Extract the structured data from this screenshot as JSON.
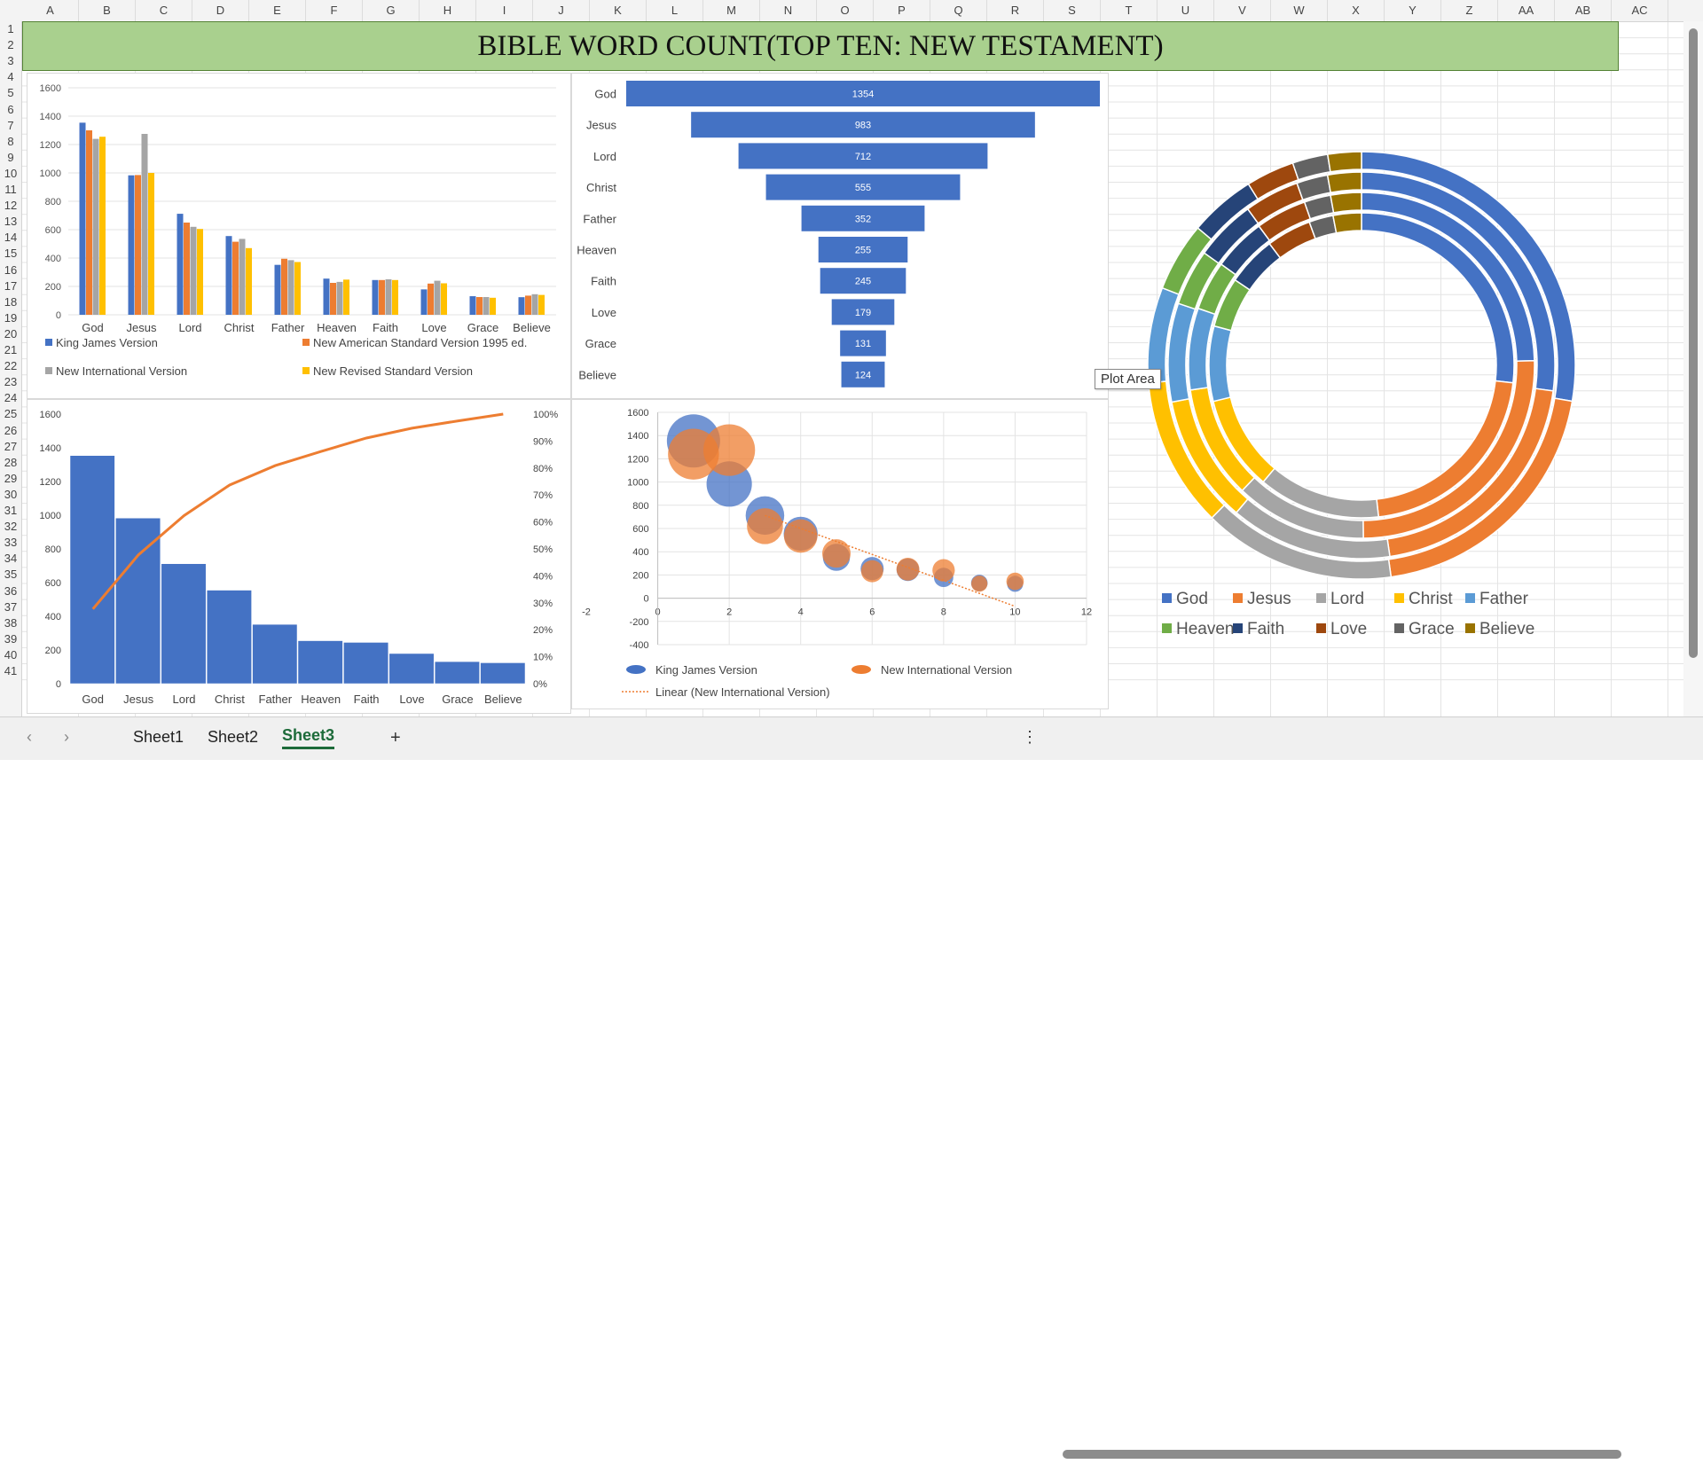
{
  "sheet": {
    "title": "BIBLE WORD COUNT(TOP TEN: NEW TESTAMENT)",
    "columns": [
      "A",
      "B",
      "C",
      "D",
      "E",
      "F",
      "G",
      "H",
      "I",
      "J",
      "K",
      "L",
      "M",
      "N",
      "O",
      "P",
      "Q",
      "R",
      "S",
      "T",
      "U",
      "V",
      "W",
      "X",
      "Y",
      "Z",
      "AA",
      "AB",
      "AC"
    ],
    "rows": [
      "1",
      "2",
      "3",
      "4",
      "5",
      "6",
      "7",
      "8",
      "9",
      "10",
      "11",
      "12",
      "13",
      "14",
      "15",
      "16",
      "17",
      "18",
      "19",
      "20",
      "21",
      "22",
      "23",
      "24",
      "25",
      "26",
      "27",
      "28",
      "29",
      "30",
      "31",
      "32",
      "33",
      "34",
      "35",
      "36",
      "37",
      "38",
      "39",
      "40",
      "41"
    ],
    "tooltip": "Plot Area"
  },
  "tabs": {
    "items": [
      {
        "label": "Sheet1",
        "active": false
      },
      {
        "label": "Sheet2",
        "active": false
      },
      {
        "label": "Sheet3",
        "active": true
      }
    ],
    "add_label": "+",
    "prev_label": "‹",
    "next_label": "›",
    "menu_label": "⋮"
  },
  "chart_data": [
    {
      "type": "bar",
      "id": "clustered",
      "categories": [
        "God",
        "Jesus",
        "Lord",
        "Christ",
        "Father",
        "Heaven",
        "Faith",
        "Love",
        "Grace",
        "Believe"
      ],
      "series": [
        {
          "name": "King James Version",
          "color": "#4472c4",
          "values": [
            1354,
            983,
            712,
            555,
            352,
            255,
            245,
            179,
            131,
            124
          ]
        },
        {
          "name": "New American Standard Version 1995 ed.",
          "color": "#ed7d31",
          "values": [
            1300,
            985,
            650,
            515,
            395,
            225,
            245,
            220,
            125,
            135
          ]
        },
        {
          "name": "New International Version",
          "color": "#a5a5a5",
          "values": [
            1240,
            1275,
            620,
            535,
            385,
            232,
            250,
            240,
            125,
            145
          ]
        },
        {
          "name": "New Revised Standard Version",
          "color": "#ffc000",
          "values": [
            1255,
            1000,
            605,
            470,
            372,
            248,
            245,
            222,
            120,
            140
          ]
        }
      ],
      "ylim": [
        0,
        1600
      ],
      "yticks": [
        0,
        200,
        400,
        600,
        800,
        1000,
        1200,
        1400,
        1600
      ],
      "grid": true,
      "legend": "bottom"
    },
    {
      "type": "bar",
      "id": "funnel",
      "orientation": "horizontal-funnel",
      "categories": [
        "God",
        "Jesus",
        "Lord",
        "Christ",
        "Father",
        "Heaven",
        "Faith",
        "Love",
        "Grace",
        "Believe"
      ],
      "values": [
        1354,
        983,
        712,
        555,
        352,
        255,
        245,
        179,
        131,
        124
      ],
      "color": "#4472c4"
    },
    {
      "type": "bar",
      "id": "pareto",
      "categories": [
        "God",
        "Jesus",
        "Lord",
        "Christ",
        "Father",
        "Heaven",
        "Faith",
        "Love",
        "Grace",
        "Believe"
      ],
      "values": [
        1354,
        983,
        712,
        555,
        352,
        255,
        245,
        179,
        131,
        124
      ],
      "ylim": [
        0,
        1600
      ],
      "yticks": [
        0,
        200,
        400,
        600,
        800,
        1000,
        1200,
        1400,
        1600
      ],
      "y2ticks": [
        "0%",
        "10%",
        "20%",
        "30%",
        "40%",
        "50%",
        "60%",
        "70%",
        "80%",
        "90%",
        "100%"
      ],
      "line_color": "#ed7d31",
      "bar_color": "#4472c4"
    },
    {
      "type": "scatter",
      "id": "bubble",
      "xlim": [
        -2,
        12
      ],
      "ylim": [
        -400,
        1600
      ],
      "xticks": [
        -2,
        0,
        2,
        4,
        6,
        8,
        10,
        12
      ],
      "yticks": [
        -400,
        -200,
        0,
        200,
        400,
        600,
        800,
        1000,
        1200,
        1400,
        1600
      ],
      "series": [
        {
          "name": "King James Version",
          "color": "#4472c4",
          "points": [
            [
              1,
              1354,
              1354
            ],
            [
              2,
              983,
              983
            ],
            [
              3,
              712,
              712
            ],
            [
              4,
              555,
              555
            ],
            [
              5,
              352,
              352
            ],
            [
              6,
              255,
              255
            ],
            [
              7,
              245,
              245
            ],
            [
              8,
              179,
              179
            ],
            [
              9,
              131,
              131
            ],
            [
              10,
              124,
              124
            ]
          ]
        },
        {
          "name": "New International Version",
          "color": "#ed7d31",
          "points": [
            [
              1,
              1240,
              1240
            ],
            [
              2,
              1275,
              1275
            ],
            [
              3,
              620,
              620
            ],
            [
              4,
              535,
              535
            ],
            [
              5,
              385,
              385
            ],
            [
              6,
              232,
              232
            ],
            [
              7,
              250,
              250
            ],
            [
              8,
              240,
              240
            ],
            [
              9,
              125,
              125
            ],
            [
              10,
              145,
              145
            ]
          ]
        }
      ],
      "trendline": {
        "name": "Linear (New International Version)",
        "color": "#ed7d31",
        "from": [
          3,
          712
        ],
        "to": [
          10,
          -70
        ]
      },
      "grid": true,
      "legend": "bottom"
    },
    {
      "type": "pie",
      "id": "doughnut",
      "style": "multi-ring doughnut",
      "categories": [
        "God",
        "Jesus",
        "Lord",
        "Christ",
        "Father",
        "Heaven",
        "Faith",
        "Love",
        "Grace",
        "Believe"
      ],
      "colors": [
        "#4472c4",
        "#ed7d31",
        "#a5a5a5",
        "#ffc000",
        "#5b9bd5",
        "#70ad47",
        "#264478",
        "#9e480e",
        "#636363",
        "#997300"
      ],
      "rings": [
        {
          "name": "King James Version",
          "values": [
            1354,
            983,
            712,
            555,
            352,
            255,
            245,
            179,
            131,
            124
          ]
        },
        {
          "name": "New American Standard Version 1995 ed.",
          "values": [
            1300,
            985,
            650,
            515,
            395,
            225,
            245,
            220,
            125,
            135
          ]
        },
        {
          "name": "New International Version",
          "values": [
            1240,
            1275,
            620,
            535,
            385,
            232,
            250,
            240,
            125,
            145
          ]
        },
        {
          "name": "New Revised Standard Version",
          "values": [
            1255,
            1000,
            605,
            470,
            372,
            248,
            245,
            222,
            120,
            140
          ]
        }
      ],
      "legend": "bottom"
    }
  ]
}
